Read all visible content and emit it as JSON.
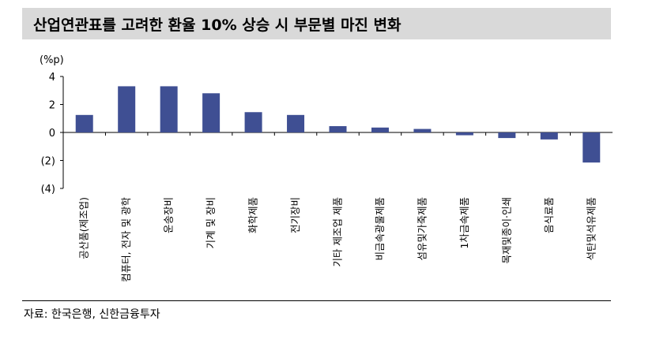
{
  "title": "산업연관표를 고려한 환율 10% 상승 시 부문별 마진 변화",
  "source": "자료: 한국은행, 신한금융투자",
  "chart_data": {
    "type": "bar",
    "unit_label": "(%p)",
    "ylim": [
      -4,
      4
    ],
    "yticks": [
      4,
      2,
      0,
      -2,
      -4
    ],
    "ytick_labels": [
      "4",
      "2",
      "0",
      "(2)",
      "(4)"
    ],
    "bar_color": "#3f4f93",
    "categories": [
      "공산품(제조업)",
      "컴퓨터, 전자 및 광학",
      "운송장비",
      "기계 및 장비",
      "화학제품",
      "전기장비",
      "기타 제조업 제품",
      "비금속광물제품",
      "섬유및가죽제품",
      "1차금속제품",
      "목재및종이·인쇄",
      "음식료품",
      "석탄및석유제품"
    ],
    "values": [
      1.25,
      3.3,
      3.3,
      2.8,
      1.45,
      1.25,
      0.45,
      0.35,
      0.25,
      -0.2,
      -0.4,
      -0.5,
      -2.15
    ]
  }
}
